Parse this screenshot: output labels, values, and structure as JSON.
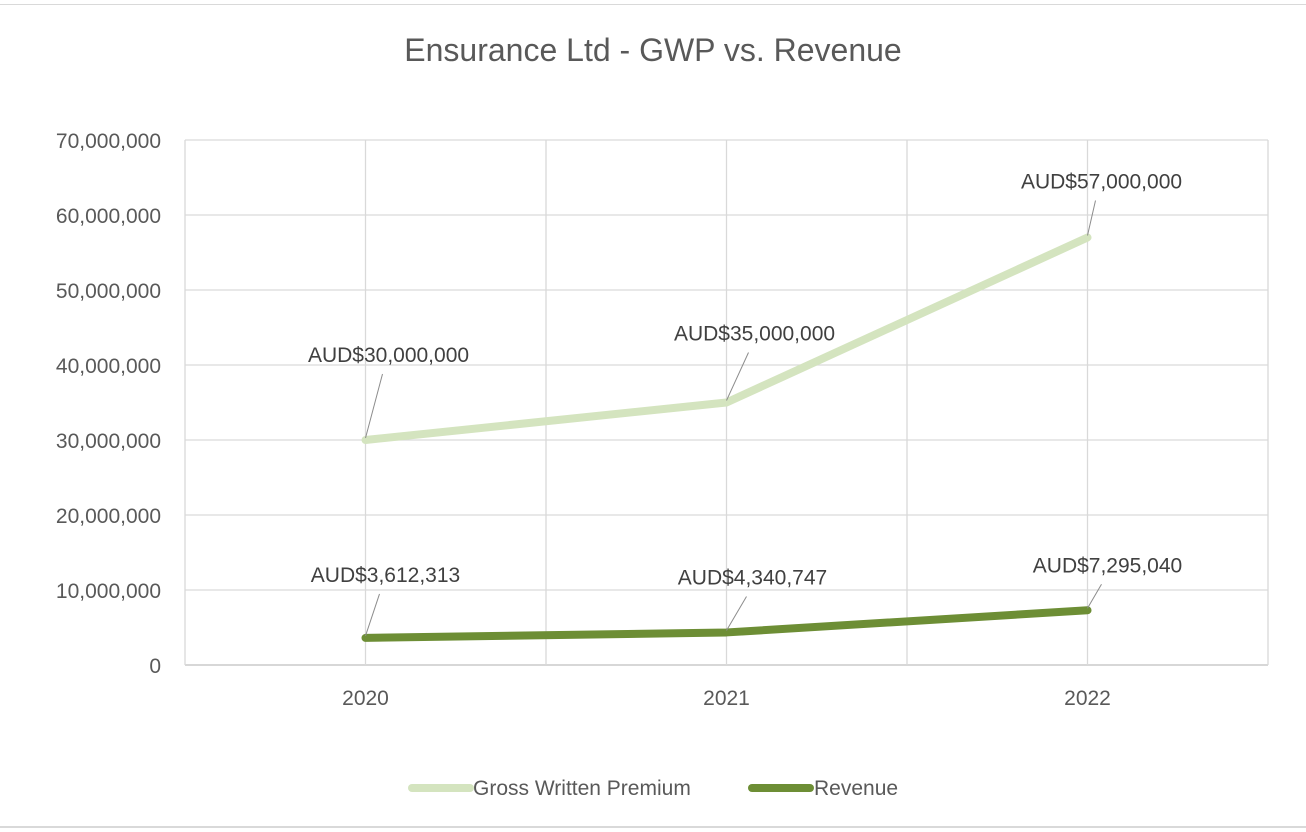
{
  "chart_data": {
    "type": "line",
    "title": "Ensurance Ltd - GWP vs. Revenue",
    "categories": [
      "2020",
      "2021",
      "2022"
    ],
    "ylim": [
      0,
      70000000
    ],
    "y_ticks": [
      0,
      10000000,
      20000000,
      30000000,
      40000000,
      50000000,
      60000000,
      70000000
    ],
    "y_tick_labels": [
      "0",
      "10,000,000",
      "20,000,000",
      "30,000,000",
      "40,000,000",
      "50,000,000",
      "60,000,000",
      "70,000,000"
    ],
    "grid": true,
    "legend_position": "bottom",
    "series": [
      {
        "name": "Gross Written Premium",
        "color": "#d4e4bf",
        "values": [
          30000000,
          35000000,
          57000000
        ],
        "data_labels": [
          "AUD$30,000,000",
          "AUD$35,000,000",
          "AUD$57,000,000"
        ]
      },
      {
        "name": "Revenue",
        "color": "#6d8e35",
        "values": [
          3612313,
          4340747,
          7295040
        ],
        "data_labels": [
          "AUD$3,612,313",
          "AUD$4,340,747",
          "AUD$7,295,040"
        ]
      }
    ]
  }
}
